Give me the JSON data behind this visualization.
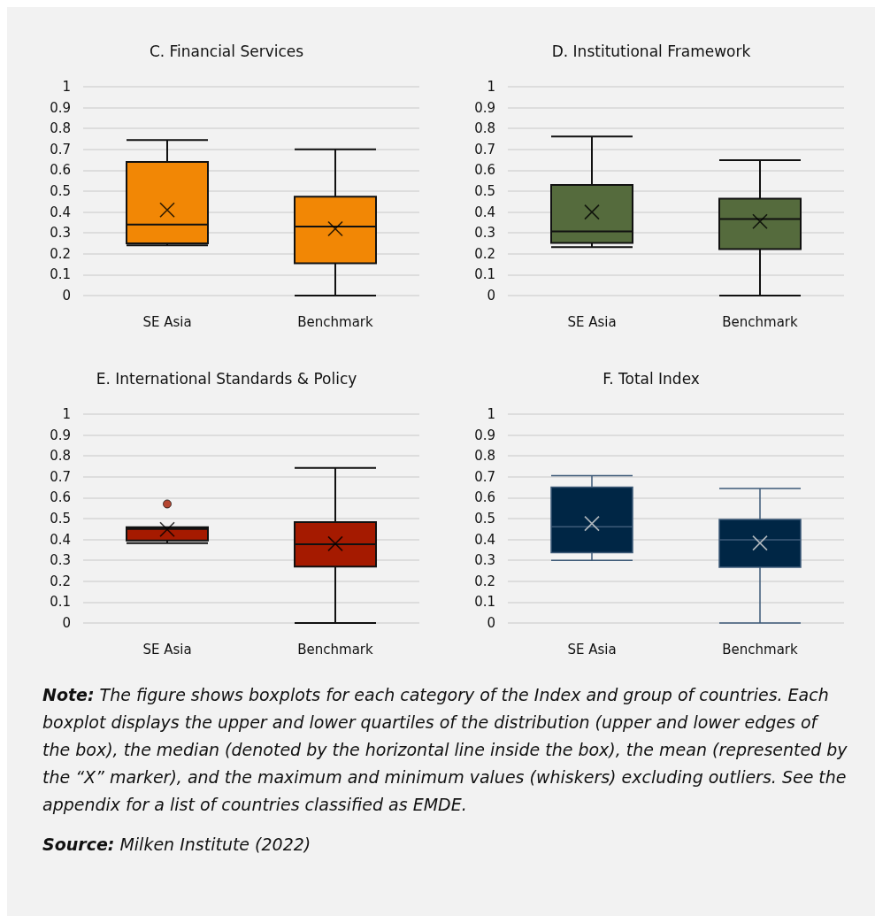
{
  "chart_data": [
    {
      "type": "box",
      "title": "C. Financial Services",
      "categories": [
        "SE Asia",
        "Benchmark"
      ],
      "color": "#f28705",
      "ylim": [
        0,
        1
      ],
      "yticks": [
        0,
        0.1,
        0.2,
        0.3,
        0.4,
        0.5,
        0.6,
        0.7,
        0.8,
        0.9,
        1
      ],
      "grid": "y",
      "boxes": [
        {
          "low": 0.24,
          "q1": 0.25,
          "median": 0.34,
          "q3": 0.64,
          "high": 0.745,
          "mean": 0.41
        },
        {
          "low": 0,
          "q1": 0.155,
          "median": 0.33,
          "q3": 0.473,
          "high": 0.7,
          "mean": 0.32
        }
      ]
    },
    {
      "type": "box",
      "title": "D. Institutional Framework",
      "categories": [
        "SE Asia",
        "Benchmark"
      ],
      "color": "#556b3d",
      "ylim": [
        0,
        1
      ],
      "yticks": [
        0,
        0.1,
        0.2,
        0.3,
        0.4,
        0.5,
        0.6,
        0.7,
        0.8,
        0.9,
        1
      ],
      "grid": "y",
      "boxes": [
        {
          "low": 0.232,
          "q1": 0.252,
          "median": 0.307,
          "q3": 0.53,
          "high": 0.762,
          "mean": 0.4
        },
        {
          "low": 0,
          "q1": 0.222,
          "median": 0.367,
          "q3": 0.464,
          "high": 0.648,
          "mean": 0.355
        }
      ]
    },
    {
      "type": "box",
      "title": "E. International Standards & Policy",
      "categories": [
        "SE Asia",
        "Benchmark"
      ],
      "color": "#a51a00",
      "ylim": [
        0,
        1
      ],
      "yticks": [
        0,
        0.1,
        0.2,
        0.3,
        0.4,
        0.5,
        0.6,
        0.7,
        0.8,
        0.9,
        1
      ],
      "grid": "y",
      "boxes": [
        {
          "low": 0.382,
          "q1": 0.395,
          "median": 0.45,
          "q3": 0.459,
          "high": 0.459,
          "mean": 0.448,
          "outliers": [
            0.57
          ]
        },
        {
          "low": 0,
          "q1": 0.27,
          "median": 0.377,
          "q3": 0.483,
          "high": 0.743,
          "mean": 0.38
        }
      ]
    },
    {
      "type": "box",
      "title": "F. Total Index",
      "categories": [
        "SE Asia",
        "Benchmark"
      ],
      "color": "#002645",
      "ylim": [
        0,
        1
      ],
      "yticks": [
        0,
        0.1,
        0.2,
        0.3,
        0.4,
        0.5,
        0.6,
        0.7,
        0.8,
        0.9,
        1
      ],
      "grid": "y",
      "boxes": [
        {
          "low": 0.3,
          "q1": 0.337,
          "median": 0.461,
          "q3": 0.65,
          "high": 0.706,
          "mean": 0.476
        },
        {
          "low": 0,
          "q1": 0.267,
          "median": 0.398,
          "q3": 0.496,
          "high": 0.644,
          "mean": 0.383
        }
      ],
      "annotations": [
        "Note: The figure shows boxplots for each category of the Index and group of countries. Each boxplot displays the upper and lower quartiles of the distribution (upper and lower edges of the box), the median (denoted by the horizontal line inside the box), the mean (represented by the “X” marker), and the maximum and minimum values (whiskers) excluding outliers. See the appendix for a list of countries classified as EMDE.",
        "Source: Milken Institute (2022)"
      ]
    }
  ]
}
